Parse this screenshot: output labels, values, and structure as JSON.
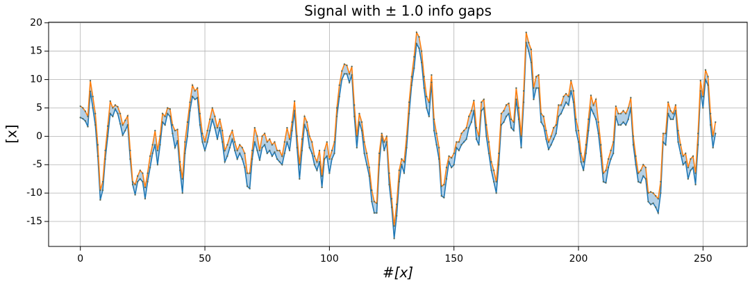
{
  "chart_data": {
    "type": "line",
    "title": "Signal with ± 1.0 info gaps",
    "xlabel": "#[x]",
    "ylabel": "[x]",
    "x": [
      0,
      1,
      2,
      3,
      4,
      5,
      6,
      7,
      8,
      9,
      10,
      11,
      12,
      13,
      14,
      15,
      16,
      17,
      18,
      19,
      20,
      21,
      22,
      23,
      24,
      25,
      26,
      27,
      28,
      29,
      30,
      31,
      32,
      33,
      34,
      35,
      36,
      37,
      38,
      39,
      40,
      41,
      42,
      43,
      44,
      45,
      46,
      47,
      48,
      49,
      50,
      51,
      52,
      53,
      54,
      55,
      56,
      57,
      58,
      59,
      60,
      61,
      62,
      63,
      64,
      65,
      66,
      67,
      68,
      69,
      70,
      71,
      72,
      73,
      74,
      75,
      76,
      77,
      78,
      79,
      80,
      81,
      82,
      83,
      84,
      85,
      86,
      87,
      88,
      89,
      90,
      91,
      92,
      93,
      94,
      95,
      96,
      97,
      98,
      99,
      100,
      101,
      102,
      103,
      104,
      105,
      106,
      107,
      108,
      109,
      110,
      111,
      112,
      113,
      114,
      115,
      116,
      117,
      118,
      119,
      120,
      121,
      122,
      123,
      124,
      125,
      126,
      127,
      128,
      129,
      130,
      131,
      132,
      133,
      134,
      135,
      136,
      137,
      138,
      139,
      140,
      141,
      142,
      143,
      144,
      145,
      146,
      147,
      148,
      149,
      150,
      151,
      152,
      153,
      154,
      155,
      156,
      157,
      158,
      159,
      160,
      161,
      162,
      163,
      164,
      165,
      166,
      167,
      168,
      169,
      170,
      171,
      172,
      173,
      174,
      175,
      176,
      177,
      178,
      179,
      180,
      181,
      182,
      183,
      184,
      185,
      186,
      187,
      188,
      189,
      190,
      191,
      192,
      193,
      194,
      195,
      196,
      197,
      198,
      199,
      200,
      201,
      202,
      203,
      204,
      205,
      206,
      207,
      208,
      209,
      210,
      211,
      212,
      213,
      214,
      215,
      216,
      217,
      218,
      219,
      220,
      221,
      222,
      223,
      224,
      225,
      226,
      227,
      228,
      229,
      230,
      231,
      232,
      233,
      234,
      235,
      236,
      237,
      238,
      239,
      240,
      241,
      242,
      243,
      244,
      245,
      246,
      247,
      248,
      249,
      250,
      251,
      252,
      253,
      254,
      255
    ],
    "series": [
      {
        "color": "#1f77b4",
        "values": [
          3.3,
          3.1,
          2.7,
          1.7,
          7.9,
          5.0,
          2.0,
          -3.5,
          -11.2,
          -9.5,
          -4.0,
          0.0,
          4.0,
          3.5,
          4.8,
          4.0,
          2.2,
          0.2,
          1.0,
          2.0,
          -4.0,
          -8.5,
          -10.3,
          -8.0,
          -7.5,
          -8.0,
          -11.0,
          -8.0,
          -5.5,
          -3.0,
          -1.5,
          -5.0,
          -1.5,
          2.5,
          2.0,
          4.0,
          3.5,
          0.5,
          -2.0,
          -0.8,
          -6.0,
          -10.0,
          -3.0,
          0.0,
          4.5,
          7.0,
          6.5,
          6.8,
          2.0,
          -1.0,
          -2.5,
          -1.0,
          1.0,
          3.0,
          1.5,
          -0.5,
          1.5,
          -1.0,
          -4.5,
          -3.5,
          -2.0,
          -0.5,
          -2.5,
          -4.0,
          -3.0,
          -4.0,
          -5.5,
          -8.8,
          -9.2,
          -4.0,
          -1.0,
          -2.5,
          -4.2,
          -2.0,
          -1.5,
          -3.0,
          -2.5,
          -3.5,
          -2.8,
          -4.0,
          -4.5,
          -5.0,
          -3.0,
          -1.0,
          -2.5,
          1.0,
          4.5,
          -2.0,
          -7.5,
          -2.5,
          2.0,
          1.0,
          -2.0,
          -3.0,
          -5.0,
          -6.0,
          -4.5,
          -9.0,
          -4.0,
          -3.5,
          -6.5,
          -4.0,
          -3.0,
          3.5,
          7.0,
          10.0,
          11.0,
          11.0,
          9.5,
          10.8,
          3.5,
          -2.0,
          2.5,
          1.0,
          -3.0,
          -5.0,
          -7.0,
          -11.5,
          -13.5,
          -13.5,
          -5.0,
          0.0,
          -2.5,
          -1.0,
          -8.5,
          -12.5,
          -18.0,
          -14.0,
          -8.0,
          -5.0,
          -6.5,
          -2.0,
          4.0,
          9.0,
          12.0,
          16.3,
          15.5,
          13.0,
          8.5,
          5.0,
          3.5,
          9.5,
          1.0,
          -1.5,
          -4.0,
          -10.5,
          -10.8,
          -7.5,
          -4.5,
          -5.5,
          -5.0,
          -2.0,
          -2.5,
          -1.5,
          -1.0,
          -0.5,
          1.5,
          2.5,
          4.5,
          -0.5,
          -1.5,
          4.5,
          5.0,
          0.0,
          -3.0,
          -6.0,
          -8.0,
          -10.0,
          -5.0,
          2.0,
          2.5,
          3.5,
          4.0,
          1.5,
          1.0,
          6.5,
          3.0,
          -2.0,
          6.0,
          16.5,
          15.0,
          13.0,
          6.5,
          8.5,
          8.5,
          2.5,
          1.8,
          -0.5,
          -2.3,
          -1.5,
          -0.5,
          0.5,
          3.5,
          4.0,
          5.0,
          6.0,
          5.5,
          8.0,
          6.0,
          1.0,
          -1.0,
          -4.5,
          -6.0,
          -3.0,
          1.0,
          5.0,
          4.0,
          3.0,
          0.5,
          -3.5,
          -8.0,
          -8.2,
          -5.5,
          -4.0,
          -3.0,
          3.5,
          2.0,
          2.0,
          2.5,
          2.0,
          3.0,
          5.0,
          -1.5,
          -5.0,
          -8.0,
          -8.2,
          -7.0,
          -7.5,
          -11.5,
          -12.0,
          -11.8,
          -12.5,
          -13.5,
          -10.0,
          -1.0,
          -1.5,
          4.0,
          3.0,
          3.0,
          4.5,
          -1.0,
          -3.0,
          -5.0,
          -4.5,
          -7.5,
          -6.0,
          -5.5,
          -8.5,
          -1.5,
          8.0,
          5.0,
          10.0,
          9.0,
          2.0,
          -2.0,
          0.5
        ]
      },
      {
        "color": "#ff7f0e",
        "values": [
          5.3,
          5.0,
          4.4,
          3.5,
          9.8,
          7.0,
          4.0,
          -1.5,
          -9.5,
          -8.0,
          -2.5,
          1.8,
          6.2,
          5.0,
          5.5,
          5.2,
          4.0,
          2.0,
          2.8,
          3.6,
          -2.5,
          -8.0,
          -8.5,
          -7.0,
          -6.0,
          -6.5,
          -9.0,
          -6.5,
          -3.5,
          -1.5,
          1.0,
          -2.5,
          0.0,
          4.0,
          3.5,
          5.0,
          4.8,
          2.0,
          1.0,
          1.2,
          -4.5,
          -7.5,
          -1.0,
          2.5,
          6.0,
          9.0,
          8.0,
          8.5,
          4.0,
          0.5,
          -1.0,
          1.0,
          3.0,
          5.0,
          3.5,
          1.5,
          3.0,
          1.0,
          -2.5,
          -1.5,
          0.0,
          1.0,
          -1.0,
          -2.5,
          -1.5,
          -2.0,
          -3.0,
          -6.5,
          -6.5,
          -2.5,
          1.5,
          0.0,
          -2.5,
          0.0,
          0.5,
          -1.0,
          -0.5,
          -1.5,
          -1.0,
          -2.5,
          -2.5,
          -3.5,
          -1.0,
          1.5,
          -0.5,
          2.5,
          6.2,
          0.0,
          -5.0,
          -0.5,
          3.5,
          2.5,
          0.0,
          -1.0,
          -3.5,
          -4.5,
          -2.5,
          -7.0,
          -2.5,
          -1.0,
          -4.0,
          -2.5,
          -1.0,
          5.0,
          9.0,
          11.5,
          12.7,
          12.5,
          11.0,
          12.3,
          5.5,
          0.0,
          4.0,
          2.5,
          -1.0,
          -3.0,
          -5.5,
          -9.5,
          -11.5,
          -11.8,
          -3.0,
          0.5,
          -1.0,
          0.0,
          -6.5,
          -11.0,
          -15.8,
          -12.0,
          -6.0,
          -4.0,
          -4.5,
          0.0,
          6.0,
          10.5,
          14.0,
          18.3,
          17.5,
          15.0,
          10.5,
          7.0,
          6.0,
          10.8,
          3.0,
          0.5,
          -2.0,
          -8.8,
          -8.5,
          -5.5,
          -3.5,
          -3.8,
          -3.0,
          -1.0,
          -1.0,
          0.5,
          1.0,
          1.5,
          3.5,
          4.5,
          6.3,
          1.5,
          0.0,
          6.0,
          6.5,
          2.0,
          -1.0,
          -4.5,
          -6.0,
          -8.0,
          -3.0,
          4.0,
          4.5,
          5.5,
          5.8,
          3.0,
          2.5,
          8.5,
          5.0,
          0.0,
          8.0,
          18.3,
          16.5,
          15.3,
          8.5,
          10.5,
          10.8,
          4.0,
          3.5,
          1.0,
          -1.0,
          0.0,
          1.5,
          2.0,
          5.5,
          5.5,
          7.0,
          7.5,
          7.0,
          9.8,
          8.0,
          3.0,
          1.0,
          -3.0,
          -4.5,
          -1.5,
          3.0,
          7.2,
          5.5,
          6.5,
          2.5,
          -1.5,
          -6.5,
          -6.0,
          -4.0,
          -2.5,
          -1.0,
          5.3,
          4.0,
          4.0,
          4.5,
          4.0,
          5.0,
          6.8,
          0.0,
          -3.5,
          -6.5,
          -6.0,
          -5.0,
          -5.5,
          -10.0,
          -9.8,
          -10.0,
          -10.5,
          -11.0,
          -8.0,
          0.5,
          0.5,
          6.0,
          4.5,
          4.0,
          5.5,
          1.0,
          -1.5,
          -3.5,
          -3.0,
          -5.5,
          -4.0,
          -3.5,
          -6.5,
          0.5,
          9.8,
          7.0,
          11.7,
          10.5,
          4.0,
          0.0,
          2.5
        ]
      }
    ],
    "fill_color": "#b4d0e6",
    "marker_color": "#5a6b5a",
    "xlim": [
      -12.75,
      267.75
    ],
    "xticks": [
      0,
      50,
      100,
      150,
      200,
      250
    ],
    "ylim": [
      -19.4,
      20.1
    ],
    "yticks": [
      -15,
      -10,
      -5,
      0,
      5,
      10,
      15,
      20
    ],
    "grid": true
  }
}
